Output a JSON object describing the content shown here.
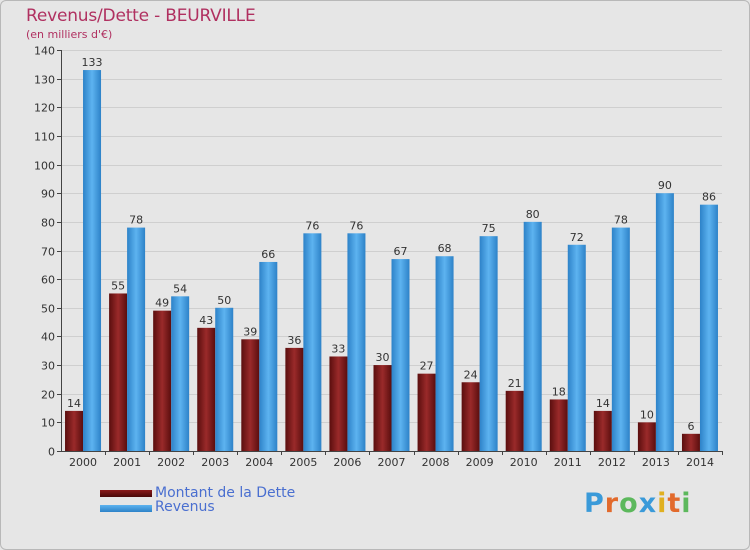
{
  "header": {
    "title": "Revenus/Dette - BEURVILLE",
    "subtitle": "(en milliers d'€)"
  },
  "legend": {
    "dette_label": "Montant de la Dette",
    "revenus_label": "Revenus"
  },
  "brand": {
    "letters": [
      "P",
      "r",
      "o",
      "x",
      "i",
      "t",
      "i"
    ],
    "colors": [
      "#3a9ad9",
      "#e26a2c",
      "#5cb85c",
      "#3a9ad9",
      "#e0b020",
      "#e26a2c",
      "#5cb85c"
    ]
  },
  "colors": {
    "dette": "#8b1a1a",
    "revenus": "#4aa3e8",
    "title": "#b03060"
  },
  "chart_data": {
    "type": "bar",
    "title": "Revenus/Dette - BEURVILLE",
    "subtitle": "(en milliers d'€)",
    "categories": [
      "2000",
      "2001",
      "2002",
      "2003",
      "2004",
      "2005",
      "2006",
      "2007",
      "2008",
      "2009",
      "2010",
      "2011",
      "2012",
      "2013",
      "2014"
    ],
    "series": [
      {
        "name": "Montant de la Dette",
        "values": [
          14,
          55,
          49,
          43,
          39,
          36,
          33,
          30,
          27,
          24,
          21,
          18,
          14,
          10,
          6
        ]
      },
      {
        "name": "Revenus",
        "values": [
          133,
          78,
          54,
          50,
          66,
          76,
          76,
          67,
          68,
          75,
          80,
          72,
          78,
          90,
          86
        ]
      }
    ],
    "ylim": [
      0,
      140
    ],
    "yticks": [
      0,
      10,
      20,
      30,
      40,
      50,
      60,
      70,
      80,
      90,
      100,
      110,
      120,
      130,
      140
    ],
    "grid": true,
    "legend_position": "bottom-left"
  }
}
